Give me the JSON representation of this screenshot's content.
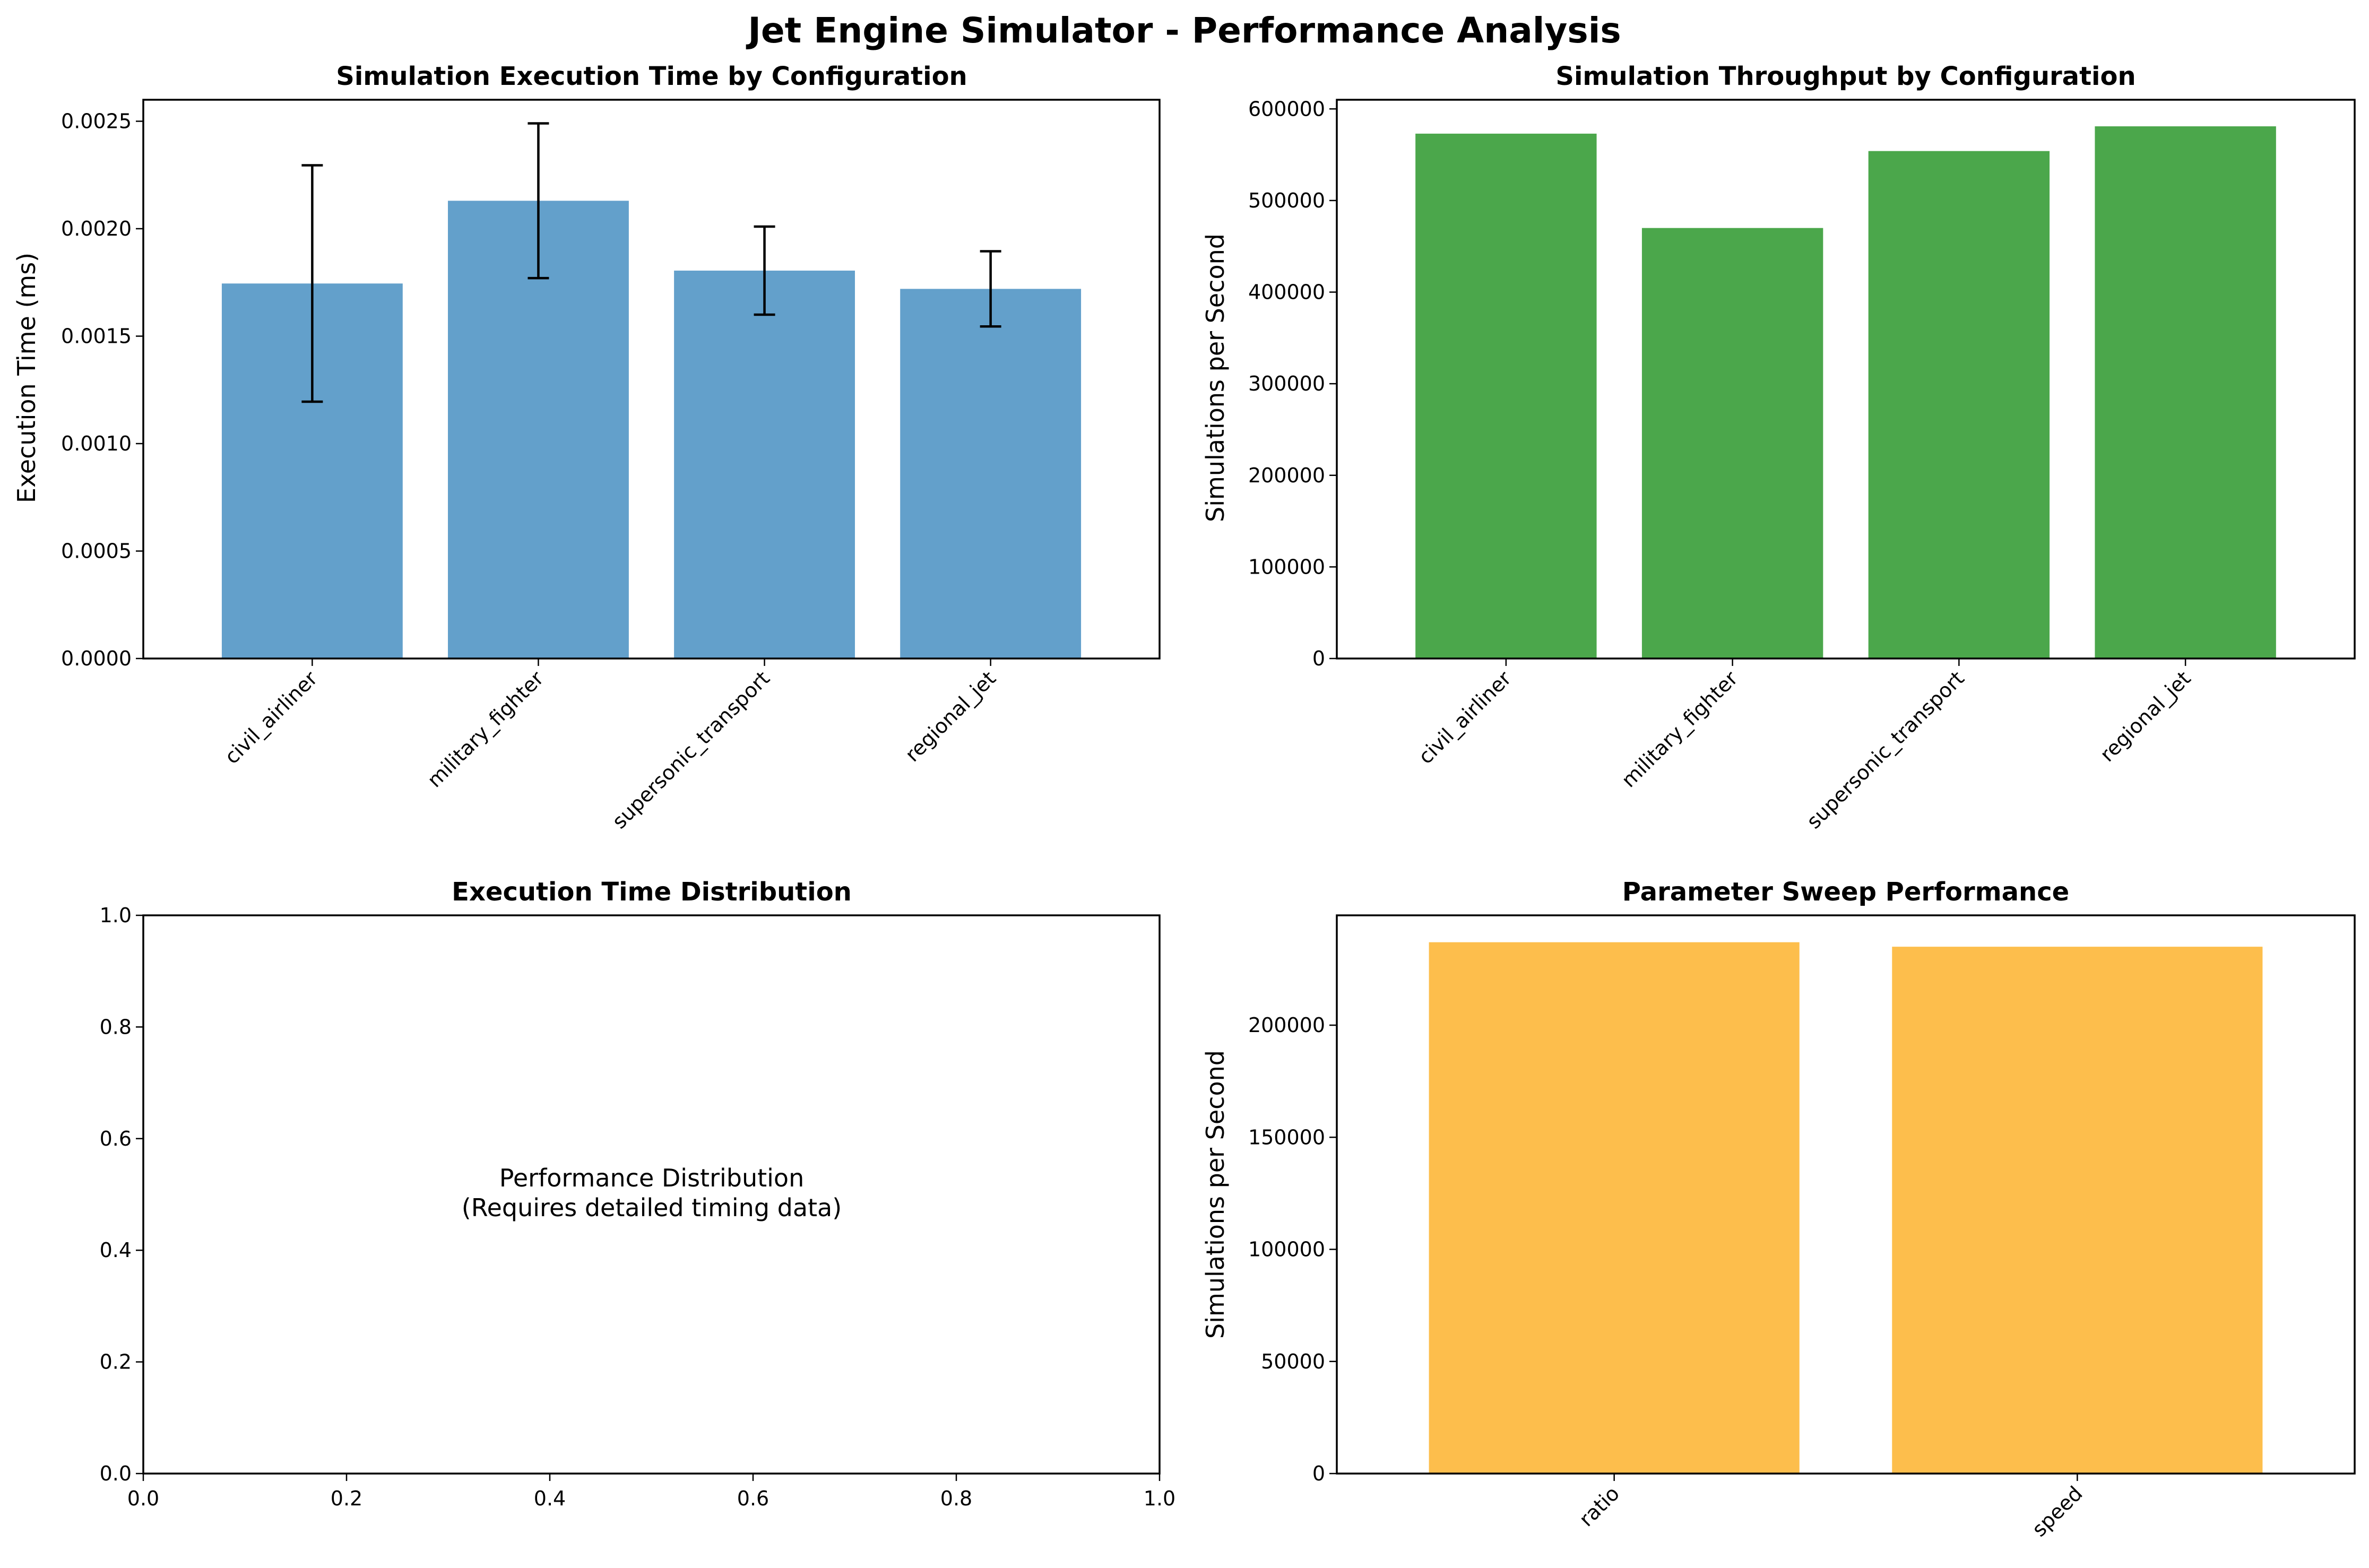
{
  "figure": {
    "title": "Jet Engine Simulator - Performance Analysis"
  },
  "colors": {
    "execution_bars": "#63a0cb",
    "throughput_bars": "#4ba74b",
    "sweep_bars": "#fdbe4c",
    "error_bars": "#000000"
  },
  "chart_data": [
    {
      "id": "exec_time",
      "type": "bar",
      "title": "Simulation Execution Time by Configuration",
      "xlabel": "",
      "ylabel": "Execution Time (ms)",
      "categories": [
        "civil_airliner",
        "military_fighter",
        "supersonic_transport",
        "regional_jet"
      ],
      "values": [
        0.001745,
        0.00213,
        0.001805,
        0.00172
      ],
      "errors": [
        0.00055,
        0.00036,
        0.000205,
        0.000175
      ],
      "ylim": [
        0,
        0.0026
      ],
      "yticks": [
        0,
        0.0005,
        0.001,
        0.0015,
        0.002,
        0.0025
      ],
      "ytick_labels": [
        "0.0000",
        "0.0005",
        "0.0010",
        "0.0015",
        "0.0020",
        "0.0025"
      ],
      "xtick_rotation": 45,
      "color_key": "execution_bars",
      "grid": false,
      "legend": false
    },
    {
      "id": "throughput",
      "type": "bar",
      "title": "Simulation Throughput by Configuration",
      "xlabel": "",
      "ylabel": "Simulations per Second",
      "categories": [
        "civil_airliner",
        "military_fighter",
        "supersonic_transport",
        "regional_jet"
      ],
      "values": [
        573000,
        470000,
        554000,
        581000
      ],
      "ylim": [
        0,
        610000
      ],
      "yticks": [
        0,
        100000,
        200000,
        300000,
        400000,
        500000,
        600000
      ],
      "ytick_labels": [
        "0",
        "100000",
        "200000",
        "300000",
        "400000",
        "500000",
        "600000"
      ],
      "xtick_rotation": 45,
      "color_key": "throughput_bars",
      "grid": false,
      "legend": false
    },
    {
      "id": "distribution",
      "type": "other",
      "title": "Execution Time Distribution",
      "xlabel": "",
      "ylabel": "",
      "xlim": [
        0,
        1
      ],
      "ylim": [
        0,
        1
      ],
      "xticks": [
        0,
        0.2,
        0.4,
        0.6,
        0.8,
        1.0
      ],
      "xtick_labels": [
        "0.0",
        "0.2",
        "0.4",
        "0.6",
        "0.8",
        "1.0"
      ],
      "yticks": [
        0,
        0.2,
        0.4,
        0.6,
        0.8,
        1.0
      ],
      "ytick_labels": [
        "0.0",
        "0.2",
        "0.4",
        "0.6",
        "0.8",
        "1.0"
      ],
      "annotation_lines": [
        "Performance Distribution",
        "(Requires detailed timing data)"
      ],
      "grid": false,
      "legend": false
    },
    {
      "id": "sweep",
      "type": "bar",
      "title": "Parameter Sweep Performance",
      "xlabel": "",
      "ylabel": "Simulations per Second",
      "categories": [
        "ratio",
        "speed"
      ],
      "values": [
        237000,
        235000
      ],
      "ylim": [
        0,
        249000
      ],
      "yticks": [
        0,
        50000,
        100000,
        150000,
        200000
      ],
      "ytick_labels": [
        "0",
        "50000",
        "100000",
        "150000",
        "200000"
      ],
      "xtick_rotation": 45,
      "color_key": "sweep_bars",
      "grid": false,
      "legend": false
    }
  ]
}
